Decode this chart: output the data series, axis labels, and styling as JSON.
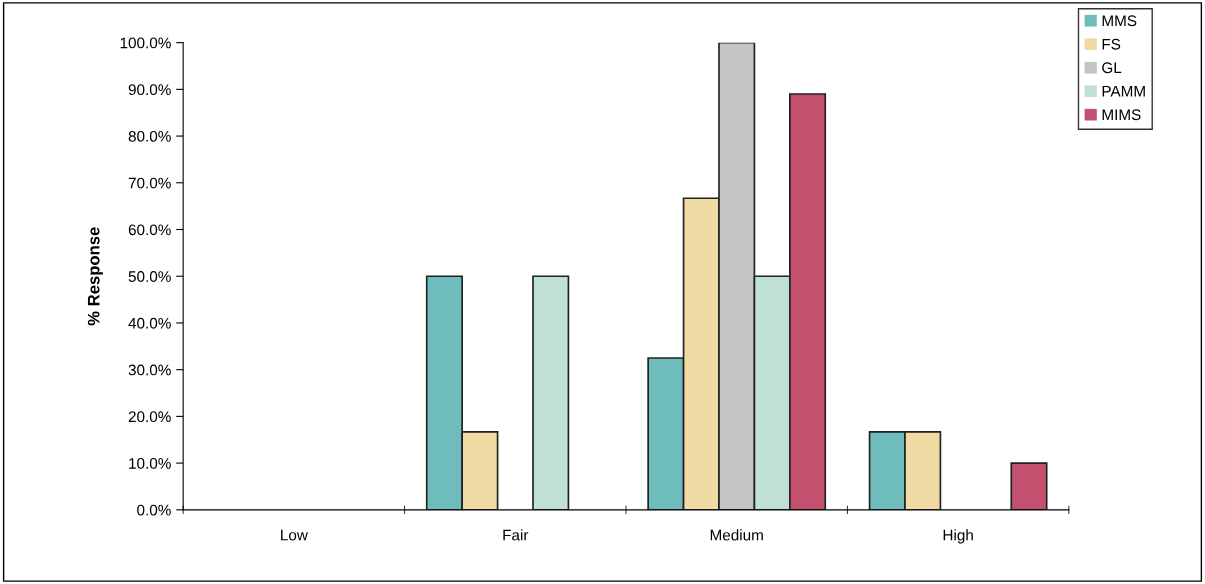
{
  "chart_data": {
    "type": "bar",
    "ylabel": "% Response",
    "categories": [
      "Low",
      "Fair",
      "Medium",
      "High"
    ],
    "series": [
      {
        "name": "MMS",
        "color": "#6fbcbc",
        "values": [
          0,
          50,
          32.5,
          16.7
        ]
      },
      {
        "name": "FS",
        "color": "#f0dba4",
        "values": [
          0,
          16.7,
          66.7,
          16.7
        ]
      },
      {
        "name": "GL",
        "color": "#c4c4c4",
        "values": [
          0,
          0,
          100,
          0
        ]
      },
      {
        "name": "PAMM",
        "color": "#bfe0d6",
        "values": [
          0,
          50,
          50,
          0
        ]
      },
      {
        "name": "MIMS",
        "color": "#c2506e",
        "values": [
          0,
          0,
          89,
          10
        ]
      }
    ],
    "ylim": [
      0,
      100
    ],
    "yticks": [
      {
        "value": 0,
        "label": "0.0%"
      },
      {
        "value": 10,
        "label": "10.0%"
      },
      {
        "value": 20,
        "label": "20.0%"
      },
      {
        "value": 30,
        "label": "30.0%"
      },
      {
        "value": 40,
        "label": "40.0%"
      },
      {
        "value": 50,
        "label": "50.0%"
      },
      {
        "value": 60,
        "label": "60.0%"
      },
      {
        "value": 70,
        "label": "70.0%"
      },
      {
        "value": 80,
        "label": "80.0%"
      },
      {
        "value": 90,
        "label": "90.0%"
      },
      {
        "value": 100,
        "label": "100.0%"
      }
    ],
    "grid": false,
    "legend": "top right"
  }
}
